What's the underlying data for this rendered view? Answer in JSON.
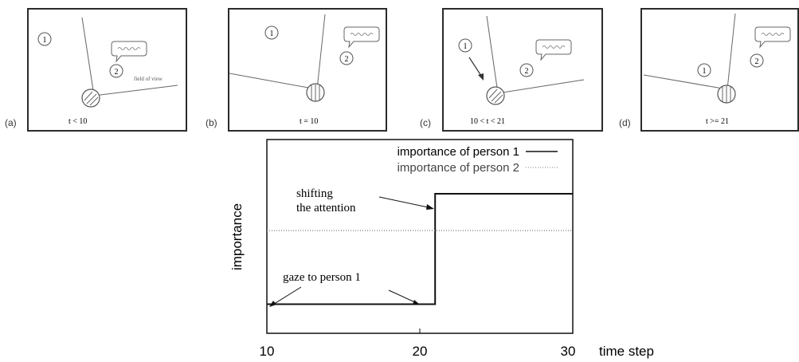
{
  "panels": [
    {
      "id": "a",
      "label": "(a)",
      "time": "t < 10",
      "fov_label": "field of view",
      "p1": "1",
      "p2": "2"
    },
    {
      "id": "b",
      "label": "(b)",
      "time": "t = 10",
      "p1": "1",
      "p2": "2"
    },
    {
      "id": "c",
      "label": "(c)",
      "time": "10 < t < 21",
      "p1": "1",
      "p2": "2"
    },
    {
      "id": "d",
      "label": "(d)",
      "time": "t >= 21",
      "p1": "1",
      "p2": "2"
    }
  ],
  "chart_data": {
    "type": "line",
    "xlabel": "time step",
    "ylabel": "importance",
    "xlim": [
      10,
      30
    ],
    "ylim": [
      0,
      1
    ],
    "x_ticks": [
      10,
      20,
      30
    ],
    "grid": false,
    "legend_position": "top-right",
    "series": [
      {
        "name": "importance of person 1",
        "style": "solid",
        "color": "#111111",
        "x": [
          10,
          21,
          21,
          30
        ],
        "values": [
          0.15,
          0.15,
          0.72,
          0.72
        ]
      },
      {
        "name": "importance of person 2",
        "style": "dotted",
        "color": "#888888",
        "x": [
          10,
          30
        ],
        "values": [
          0.53,
          0.53
        ]
      }
    ],
    "annotations": [
      {
        "text_lines": [
          "shifting",
          "the attention"
        ]
      },
      {
        "text_lines": [
          "gaze to person 1"
        ]
      }
    ]
  }
}
